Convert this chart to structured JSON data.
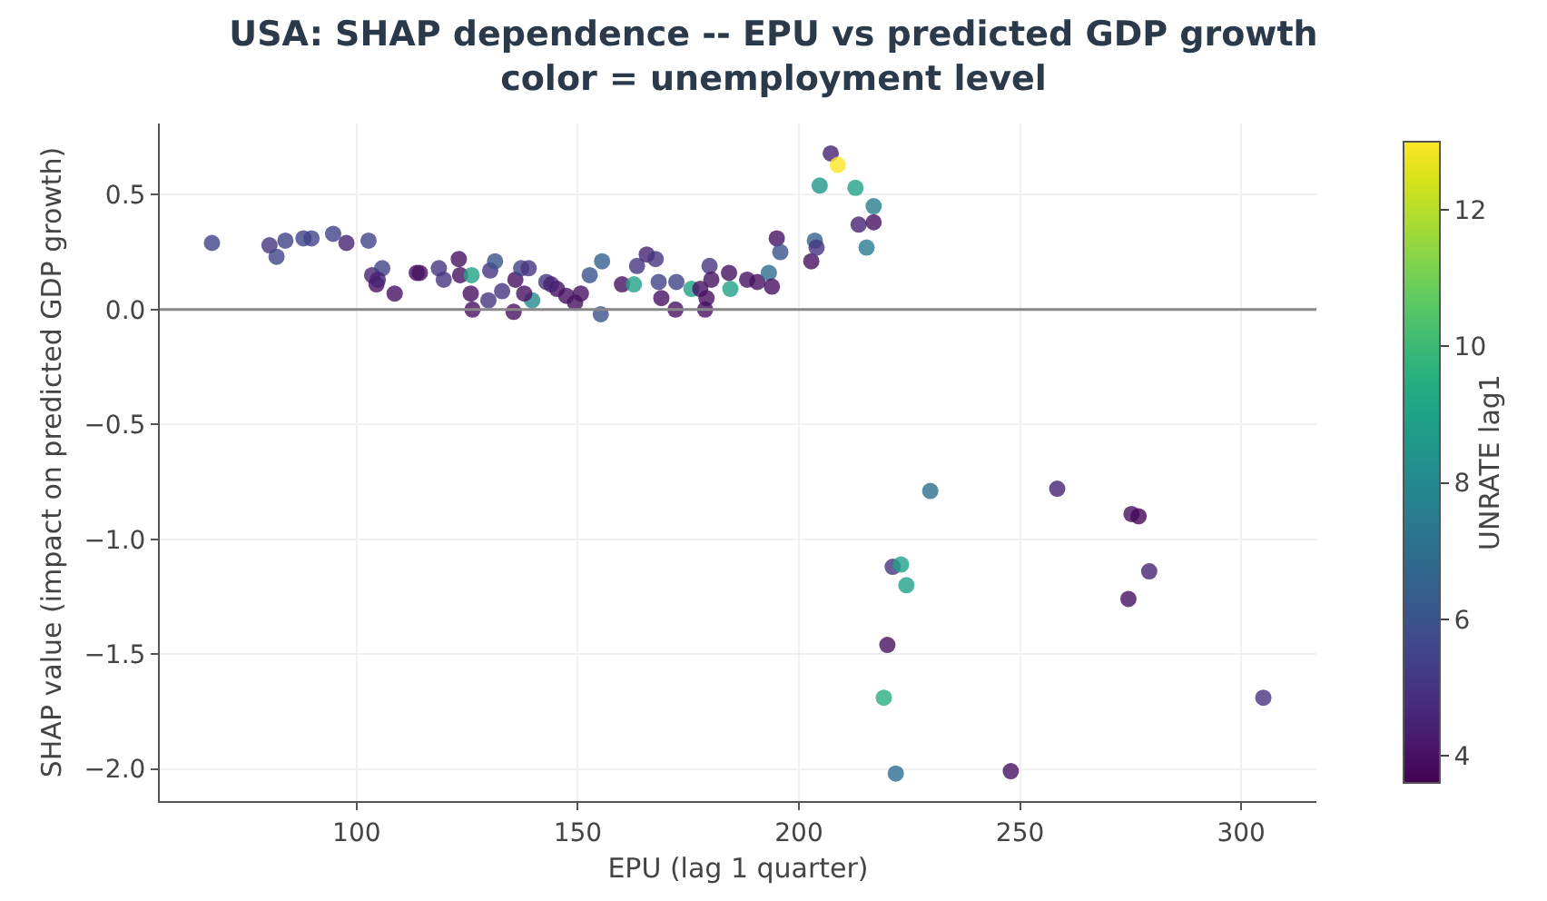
{
  "chart_data": {
    "type": "scatter",
    "title": "USA: SHAP dependence -- EPU vs predicted GDP growth\ncolor = unemployment level",
    "xlabel": "EPU (lag 1 quarter)",
    "ylabel": "SHAP value (impact on predicted GDP growth)",
    "clabel": "UNRATE lag1",
    "x": [
      67.3,
      80.3,
      81.9,
      83.9,
      88.0,
      89.8,
      94.7,
      97.7,
      102.7,
      103.5,
      105.8,
      104.5,
      104.8,
      108.6,
      113.6,
      114.3,
      118.6,
      119.7,
      123.1,
      123.4,
      126.0,
      125.8,
      126.2,
      129.8,
      130.2,
      131.3,
      132.9,
      135.5,
      135.9,
      137.2,
      138.9,
      139.7,
      137.9,
      142.9,
      145.3,
      147.4,
      149.4,
      150.7,
      152.7,
      155.5,
      155.2,
      144.0,
      160.0,
      162.7,
      163.4,
      165.6,
      167.6,
      168.3,
      172.3,
      172.1,
      168.9,
      175.7,
      177.7,
      179.8,
      180.2,
      178.8,
      179.1,
      184.2,
      184.5,
      188.3,
      190.6,
      193.2,
      193.9,
      195.0,
      195.8,
      202.8,
      203.6,
      204.0,
      204.7,
      207.2,
      208.8,
      212.8,
      213.5,
      216.9,
      216.9,
      215.3,
      229.7,
      258.4,
      275.2,
      276.8,
      279.2,
      274.5,
      221.2,
      223.1,
      224.3,
      220.0,
      219.2,
      221.9,
      247.9,
      305.0
    ],
    "values": [
      0.29,
      0.28,
      0.23,
      0.3,
      0.31,
      0.31,
      0.33,
      0.29,
      0.3,
      0.15,
      0.18,
      0.11,
      0.13,
      0.07,
      0.16,
      0.16,
      0.18,
      0.13,
      0.22,
      0.15,
      0.15,
      0.07,
      0.0,
      0.04,
      0.17,
      0.21,
      0.08,
      -0.01,
      0.13,
      0.18,
      0.18,
      0.04,
      0.07,
      0.12,
      0.09,
      0.06,
      0.03,
      0.07,
      0.15,
      0.21,
      -0.02,
      0.11,
      0.11,
      0.11,
      0.19,
      0.24,
      0.22,
      0.12,
      0.12,
      0.0,
      0.05,
      0.09,
      0.09,
      0.19,
      0.13,
      0.0,
      0.05,
      0.16,
      0.09,
      0.13,
      0.12,
      0.16,
      0.1,
      0.31,
      0.25,
      0.21,
      0.3,
      0.27,
      0.54,
      0.68,
      0.63,
      0.53,
      0.37,
      0.38,
      0.45,
      0.27,
      -0.79,
      -0.78,
      -0.89,
      -0.9,
      -1.14,
      -1.26,
      -1.12,
      -1.11,
      -1.2,
      -1.46,
      -1.69,
      -2.02,
      -2.01,
      -1.69
    ],
    "cvalues": [
      5.5,
      5,
      5.5,
      5.5,
      5.5,
      5.5,
      5.5,
      4.5,
      5.5,
      4.5,
      5.5,
      4,
      4.5,
      4,
      4,
      4,
      5,
      5,
      4,
      4,
      9,
      4,
      4,
      5,
      5,
      6,
      5,
      4,
      4,
      5.5,
      5,
      8,
      4,
      5,
      4,
      4,
      4,
      4,
      6,
      6.5,
      6,
      4.5,
      4,
      9,
      5,
      4.5,
      5,
      5.5,
      5.5,
      4,
      4,
      9,
      4,
      5,
      4,
      4,
      4,
      4,
      9,
      4,
      4,
      7,
      4,
      4,
      6,
      4,
      6.5,
      5,
      8.5,
      4.5,
      13,
      9,
      4.5,
      4,
      7.5,
      7.5,
      7,
      4.5,
      4,
      3.7,
      4.5,
      4,
      5,
      9,
      9,
      4,
      9.5,
      7,
      4,
      5
    ],
    "xlim": [
      55.5,
      317
    ],
    "xticks": [
      100,
      150,
      200,
      250,
      300
    ],
    "ylim": [
      -2.14,
      0.81
    ],
    "yticks": [
      {
        "value": -2,
        "label": "−2.0"
      },
      {
        "value": -1.5,
        "label": "−1.5"
      },
      {
        "value": -1,
        "label": "−1.0"
      },
      {
        "value": -0.5,
        "label": "−0.5"
      },
      {
        "value": 0,
        "label": "0.0"
      },
      {
        "value": 0.5,
        "label": "0.5"
      }
    ],
    "clim": [
      3.6,
      13.0
    ],
    "cticks": [
      4,
      6,
      8,
      10,
      12
    ],
    "ref_lines": [
      {
        "axis": "y",
        "value": 0,
        "color": "#888888"
      }
    ],
    "grid": true,
    "marker": "circle"
  }
}
